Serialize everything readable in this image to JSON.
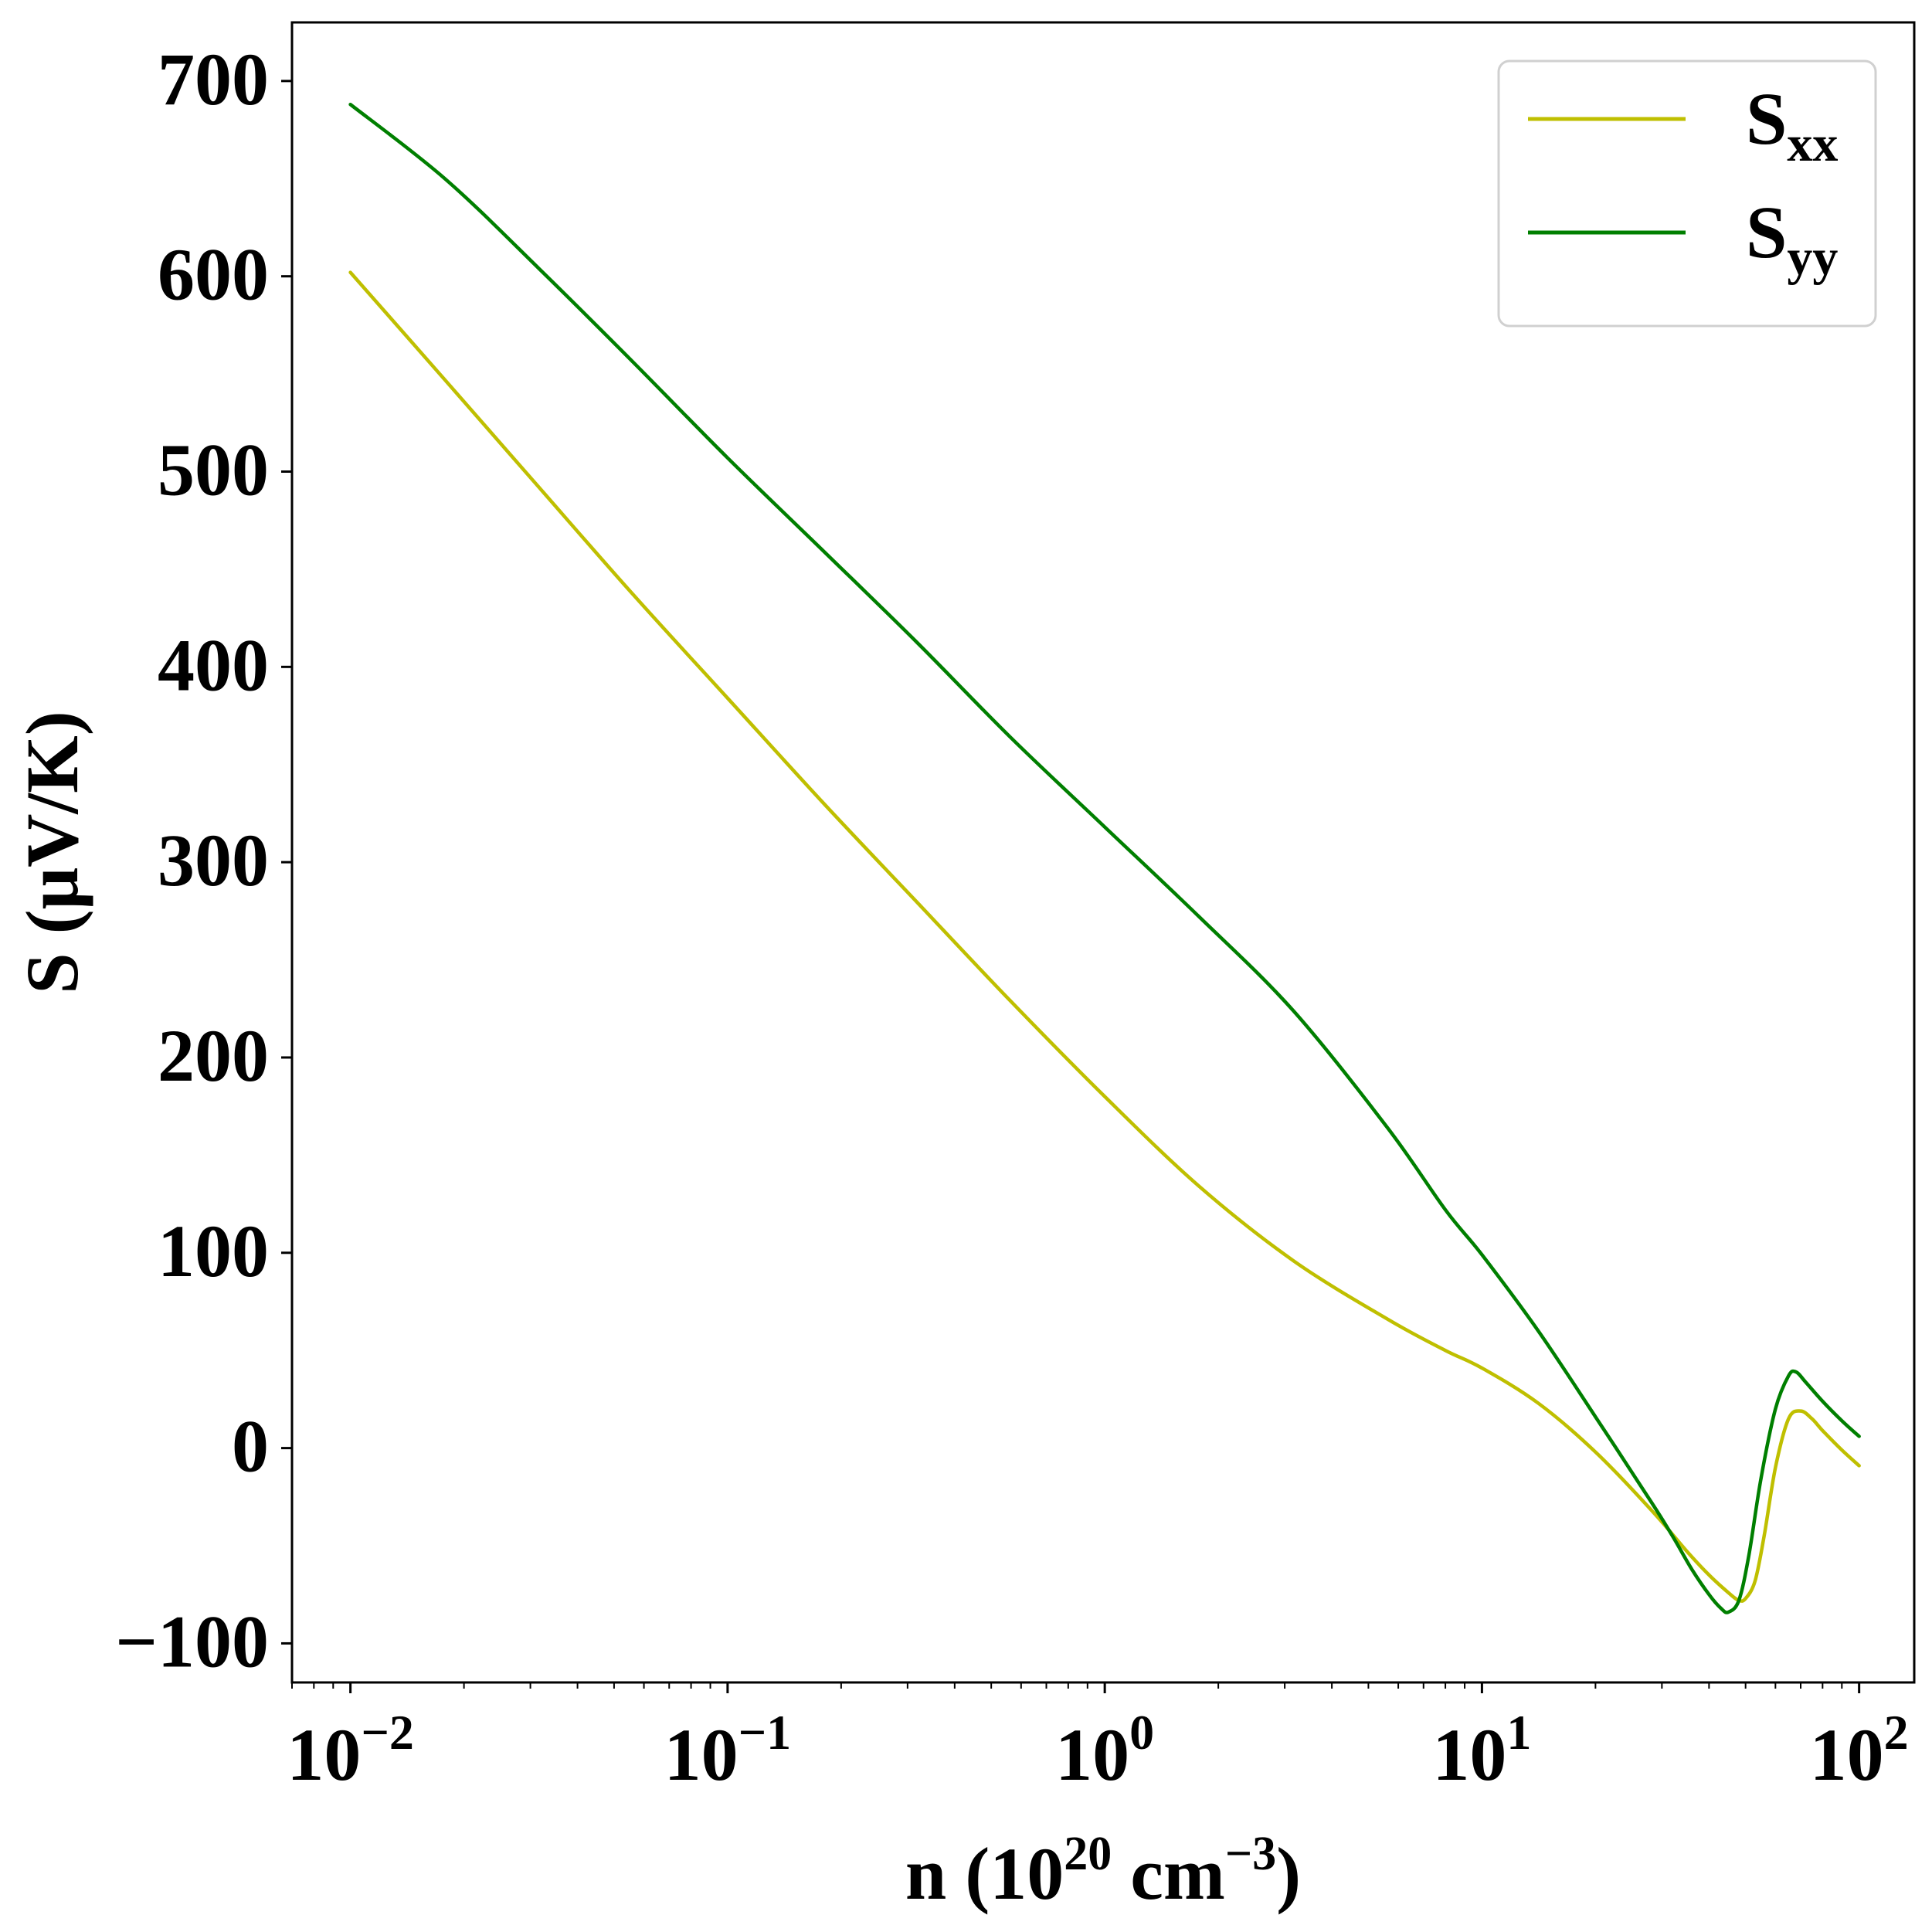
{
  "chart_data": {
    "type": "line",
    "xscale": "log",
    "xlim": [
      0.007,
      140
    ],
    "ylim": [
      -120,
      730
    ],
    "xlabel": {
      "base": "n (10",
      "sup1": "20",
      "mid": " cm",
      "sup2": "−3",
      "end": ")"
    },
    "ylabel": "S (μV/K)",
    "xticks": [
      {
        "value": 0.01,
        "base": "10",
        "exp": "−2"
      },
      {
        "value": 0.1,
        "base": "10",
        "exp": "−1"
      },
      {
        "value": 1,
        "base": "10",
        "exp": "0"
      },
      {
        "value": 10,
        "base": "10",
        "exp": "1"
      },
      {
        "value": 100,
        "base": "10",
        "exp": "2"
      }
    ],
    "yticks": [
      {
        "value": -100,
        "label": "−100"
      },
      {
        "value": 0,
        "label": "0"
      },
      {
        "value": 100,
        "label": "100"
      },
      {
        "value": 200,
        "label": "200"
      },
      {
        "value": 300,
        "label": "300"
      },
      {
        "value": 400,
        "label": "400"
      },
      {
        "value": 500,
        "label": "500"
      },
      {
        "value": 600,
        "label": "600"
      },
      {
        "value": 700,
        "label": "700"
      }
    ],
    "grid": false,
    "legend_position": "top-right",
    "series": [
      {
        "name": "S",
        "name_sub": "xx",
        "color": "#bfbf00",
        "x": [
          0.01,
          0.0178,
          0.0316,
          0.0562,
          0.1,
          0.178,
          0.316,
          0.562,
          1,
          1.78,
          3.16,
          5.62,
          8.0,
          10,
          14.1,
          20,
          28.2,
          35,
          40,
          45,
          48,
          50,
          53,
          56,
          60,
          65,
          70,
          75,
          80,
          90,
          100
        ],
        "y": [
          602,
          547,
          492,
          437,
          384,
          331,
          280,
          229,
          180,
          134,
          96,
          66,
          50,
          41,
          23,
          -2,
          -32,
          -53,
          -65,
          -74,
          -78,
          -77,
          -68,
          -45,
          -10,
          15,
          19,
          15,
          9,
          -1,
          -9
        ]
      },
      {
        "name": "S",
        "name_sub": "yy",
        "color": "#007f00",
        "x": [
          0.01,
          0.0178,
          0.0316,
          0.0562,
          0.1,
          0.178,
          0.316,
          0.562,
          1,
          1.78,
          3.16,
          5.62,
          8.0,
          10,
          14.1,
          20,
          28.2,
          32,
          36,
          40,
          43,
          45,
          48,
          51,
          55,
          60,
          65,
          68,
          72,
          80,
          90,
          100
        ],
        "y": [
          688,
          650,
          604,
          556,
          507,
          460,
          413,
          364,
          318,
          272,
          224,
          164,
          122,
          99,
          60,
          16,
          -28,
          -45,
          -62,
          -75,
          -82,
          -84,
          -78,
          -55,
          -15,
          20,
          37,
          39,
          34,
          24,
          14,
          6
        ]
      }
    ]
  }
}
